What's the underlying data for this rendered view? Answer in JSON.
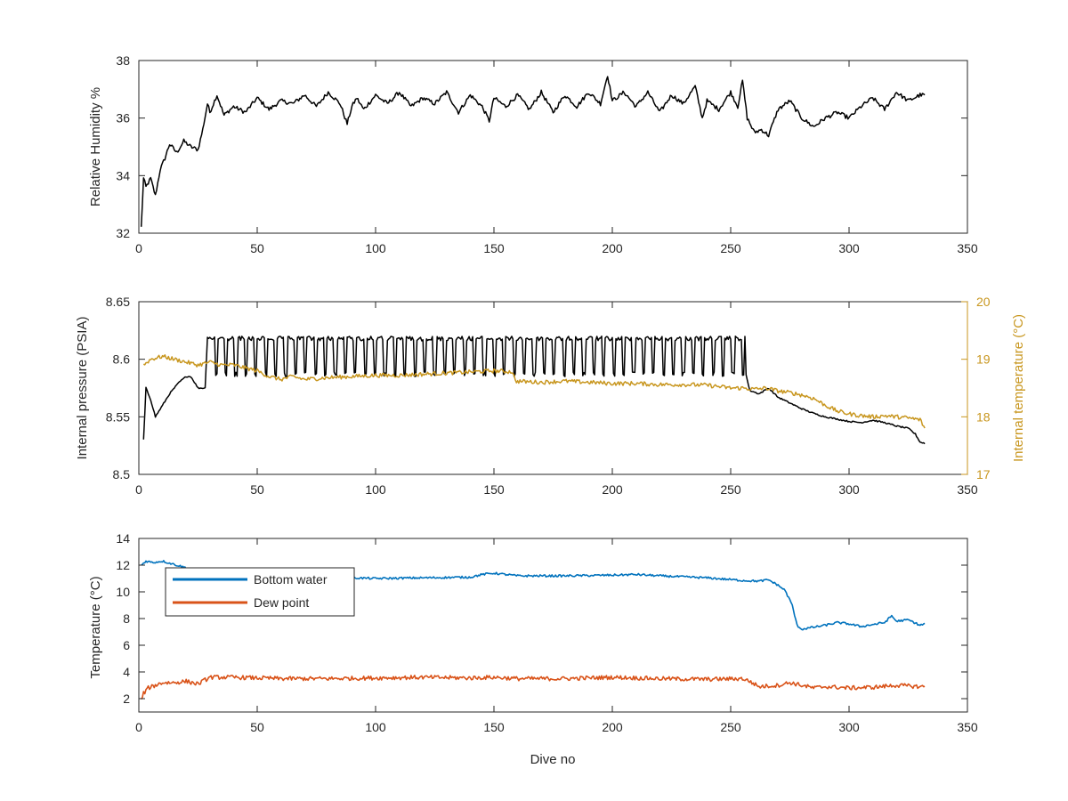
{
  "chart_data": [
    {
      "type": "line",
      "title": "",
      "xlabel": "",
      "ylabel": "Relative Humidity %",
      "xlim": [
        0,
        350
      ],
      "ylim": [
        32,
        38
      ],
      "xticks": [
        0,
        50,
        100,
        150,
        200,
        250,
        300,
        350
      ],
      "yticks": [
        32,
        34,
        36,
        38
      ],
      "grid": false,
      "series": [
        {
          "color": "#000000",
          "x": [
            1,
            2,
            3,
            5,
            7,
            9,
            11,
            13,
            16,
            19,
            22,
            25,
            27,
            29,
            30,
            33,
            36,
            40,
            45,
            50,
            55,
            60,
            65,
            70,
            75,
            80,
            85,
            88,
            90,
            92,
            95,
            100,
            105,
            110,
            115,
            120,
            125,
            130,
            135,
            140,
            145,
            148,
            150,
            155,
            160,
            165,
            170,
            175,
            180,
            185,
            190,
            195,
            198,
            200,
            205,
            210,
            215,
            220,
            225,
            230,
            235,
            238,
            240,
            245,
            250,
            253,
            255,
            257,
            260,
            263,
            266,
            270,
            275,
            280,
            285,
            290,
            295,
            300,
            305,
            310,
            315,
            320,
            325,
            330,
            332
          ],
          "values": [
            32.2,
            33.9,
            33.6,
            33.9,
            33.3,
            34.2,
            34.6,
            35.1,
            34.8,
            35.2,
            35.0,
            34.9,
            35.6,
            36.5,
            36.2,
            36.8,
            36.1,
            36.4,
            36.2,
            36.7,
            36.3,
            36.6,
            36.5,
            36.8,
            36.4,
            36.9,
            36.5,
            35.8,
            36.4,
            36.7,
            36.3,
            36.8,
            36.5,
            36.9,
            36.4,
            36.7,
            36.5,
            36.9,
            36.2,
            36.8,
            36.4,
            35.9,
            36.7,
            36.4,
            36.8,
            36.3,
            36.9,
            36.2,
            36.8,
            36.4,
            36.9,
            36.5,
            37.5,
            36.6,
            36.9,
            36.4,
            36.9,
            36.2,
            36.8,
            36.5,
            37.1,
            36.0,
            36.6,
            36.3,
            36.9,
            36.4,
            37.3,
            36.0,
            35.5,
            35.6,
            35.4,
            36.3,
            36.6,
            36.0,
            35.7,
            36.0,
            36.2,
            36.0,
            36.4,
            36.7,
            36.3,
            36.9,
            36.6,
            36.8,
            36.8
          ]
        }
      ]
    },
    {
      "type": "line",
      "title": "",
      "xlabel": "",
      "ylabel": "Internal pressure (PSIA)",
      "y2label": "Internal temperature (°C)",
      "xlim": [
        0,
        350
      ],
      "ylim": [
        8.5,
        8.65
      ],
      "y2lim": [
        17,
        20
      ],
      "xticks": [
        0,
        50,
        100,
        150,
        200,
        250,
        300,
        350
      ],
      "yticks": [
        8.5,
        8.55,
        8.6,
        8.65
      ],
      "y2ticks": [
        17,
        18,
        19,
        20
      ],
      "grid": false,
      "series": [
        {
          "color": "#000000",
          "axis": "left",
          "x": [
            2,
            3,
            5,
            7,
            10,
            13,
            17,
            20,
            22,
            25,
            28,
            29,
            30,
            40,
            255,
            258,
            262,
            266,
            270,
            275,
            280,
            285,
            290,
            295,
            300,
            305,
            310,
            315,
            320,
            325,
            328,
            330,
            332
          ],
          "values": [
            8.53,
            8.575,
            8.565,
            8.55,
            8.56,
            8.57,
            8.58,
            8.585,
            8.585,
            8.575,
            8.575,
            8.62,
            8.605,
            8.6,
            8.6,
            8.573,
            8.57,
            8.575,
            8.567,
            8.562,
            8.557,
            8.553,
            8.55,
            8.548,
            8.546,
            8.545,
            8.547,
            8.545,
            8.542,
            8.54,
            8.535,
            8.528,
            8.527
          ],
          "oscillation": {
            "x_start": 29,
            "x_end": 256,
            "period": 4.2,
            "high": 8.62,
            "low": 8.585
          }
        },
        {
          "color": "#c8961e",
          "axis": "right",
          "x": [
            2,
            5,
            10,
            15,
            20,
            25,
            30,
            35,
            40,
            45,
            50,
            55,
            60,
            65,
            70,
            80,
            90,
            100,
            110,
            120,
            130,
            140,
            150,
            158,
            159,
            170,
            180,
            190,
            200,
            210,
            220,
            230,
            240,
            250,
            255,
            260,
            265,
            270,
            275,
            280,
            285,
            290,
            295,
            300,
            305,
            310,
            315,
            320,
            325,
            330,
            332
          ],
          "values": [
            18.9,
            19.0,
            19.05,
            19.0,
            18.95,
            18.9,
            18.95,
            18.9,
            18.9,
            18.85,
            18.8,
            18.7,
            18.65,
            18.7,
            18.65,
            18.68,
            18.7,
            18.72,
            18.72,
            18.74,
            18.76,
            18.78,
            18.8,
            18.78,
            18.62,
            18.6,
            18.62,
            18.6,
            18.58,
            18.58,
            18.56,
            18.56,
            18.55,
            18.5,
            18.5,
            18.48,
            18.5,
            18.45,
            18.42,
            18.38,
            18.32,
            18.2,
            18.1,
            18.05,
            18.02,
            18.0,
            18.02,
            18.0,
            17.98,
            17.95,
            17.8
          ]
        }
      ]
    },
    {
      "type": "line",
      "title": "",
      "xlabel": "Dive no",
      "ylabel": "Temperature (°C)",
      "xlim": [
        0,
        350
      ],
      "ylim": [
        1,
        14
      ],
      "xticks": [
        0,
        50,
        100,
        150,
        200,
        250,
        300,
        350
      ],
      "yticks": [
        2,
        4,
        6,
        8,
        10,
        12,
        14
      ],
      "grid": false,
      "legend": "top-left",
      "series": [
        {
          "name": "Bottom water",
          "color": "#0072bd",
          "x": [
            1,
            3,
            6,
            10,
            14,
            18,
            20,
            25,
            30,
            40,
            50,
            60,
            70,
            80,
            90,
            100,
            120,
            140,
            145,
            150,
            160,
            180,
            200,
            210,
            220,
            240,
            255,
            262,
            266,
            270,
            273,
            276,
            278,
            280,
            285,
            290,
            295,
            300,
            305,
            310,
            315,
            318,
            320,
            325,
            330,
            332
          ],
          "values": [
            12.0,
            12.3,
            12.2,
            12.3,
            12.1,
            11.9,
            11.8,
            11.6,
            11.5,
            11.4,
            11.4,
            11.3,
            11.2,
            11.15,
            11.05,
            11.0,
            11.05,
            11.1,
            11.3,
            11.4,
            11.2,
            11.2,
            11.25,
            11.3,
            11.2,
            11.05,
            10.85,
            10.8,
            10.9,
            10.5,
            10.1,
            9.0,
            7.5,
            7.2,
            7.35,
            7.5,
            7.7,
            7.6,
            7.4,
            7.55,
            7.7,
            8.2,
            7.8,
            7.9,
            7.5,
            7.6
          ]
        },
        {
          "name": "Dew point",
          "color": "#d95319",
          "x": [
            1,
            2,
            4,
            7,
            10,
            15,
            20,
            25,
            28,
            30,
            40,
            50,
            60,
            80,
            100,
            120,
            140,
            150,
            160,
            180,
            200,
            220,
            240,
            255,
            258,
            262,
            270,
            275,
            280,
            285,
            290,
            300,
            310,
            320,
            330,
            332
          ],
          "values": [
            1.9,
            2.4,
            2.8,
            3.0,
            3.2,
            3.2,
            3.3,
            3.1,
            3.4,
            3.6,
            3.6,
            3.55,
            3.5,
            3.5,
            3.55,
            3.6,
            3.55,
            3.6,
            3.5,
            3.5,
            3.6,
            3.5,
            3.45,
            3.5,
            3.3,
            2.9,
            3.0,
            3.2,
            3.0,
            2.8,
            2.9,
            2.8,
            2.85,
            3.0,
            2.9,
            2.9
          ]
        }
      ]
    }
  ]
}
